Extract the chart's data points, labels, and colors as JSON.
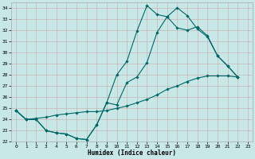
{
  "title": "",
  "xlabel": "Humidex (Indice chaleur)",
  "background_color": "#c8e8e8",
  "grid_color": "#c8a8a8",
  "line_color": "#006666",
  "xlim": [
    -0.5,
    23.5
  ],
  "ylim": [
    22,
    34.5
  ],
  "xticks": [
    0,
    1,
    2,
    3,
    4,
    5,
    6,
    7,
    8,
    9,
    10,
    11,
    12,
    13,
    14,
    15,
    16,
    17,
    18,
    19,
    20,
    21,
    22,
    23
  ],
  "yticks": [
    22,
    23,
    24,
    25,
    26,
    27,
    28,
    29,
    30,
    31,
    32,
    33,
    34
  ],
  "line1_y": [
    24.8,
    24.0,
    24.0,
    23.0,
    22.8,
    22.7,
    22.3,
    22.2,
    23.5,
    25.5,
    28.0,
    29.2,
    31.9,
    34.2,
    33.4,
    33.2,
    34.0,
    33.3,
    32.1,
    31.4,
    29.7,
    28.8,
    27.8,
    null
  ],
  "line2_y": [
    24.8,
    24.0,
    24.0,
    23.0,
    22.8,
    22.7,
    22.3,
    22.2,
    23.5,
    25.5,
    25.3,
    27.3,
    27.8,
    29.1,
    31.8,
    33.2,
    32.2,
    32.0,
    32.3,
    31.5,
    29.7,
    28.8,
    27.8,
    null
  ],
  "line3_y": [
    24.8,
    24.0,
    24.1,
    24.2,
    24.4,
    24.5,
    24.6,
    24.7,
    24.7,
    24.8,
    25.0,
    25.2,
    25.5,
    25.8,
    26.2,
    26.7,
    27.0,
    27.4,
    27.7,
    27.9,
    27.9,
    27.9,
    27.8,
    null
  ],
  "xlabel_fontsize": 5.5,
  "tick_fontsize": 4.5,
  "marker_size": 1.8,
  "line_width": 0.8
}
